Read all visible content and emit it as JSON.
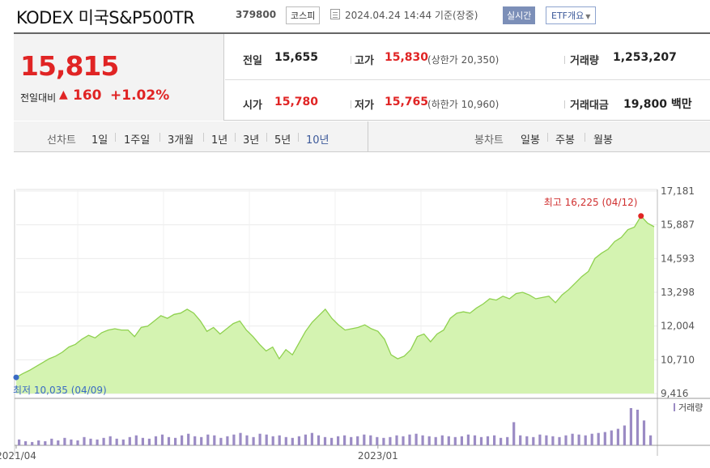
{
  "header": {
    "name": "KODEX 미국S&P500TR",
    "code": "379800",
    "market": "코스피",
    "timestamp": "2024.04.24 14:44 기준(장중)",
    "realtime": "실시간",
    "etf_button": "ETF개요"
  },
  "quote": {
    "price": "15,815",
    "change_label": "전일대비",
    "change_arrow": "▲",
    "change_abs": "160",
    "change_pct": "+1.02%",
    "prev_close_label": "전일",
    "prev_close": "15,655",
    "high_label": "고가",
    "high": "15,830",
    "upper_limit_label": "상한가",
    "upper_limit": "20,350",
    "volume_label": "거래량",
    "volume": "1,253,207",
    "open_label": "시가",
    "open": "15,780",
    "low_label": "저가",
    "low": "15,765",
    "lower_limit_label": "하한가",
    "lower_limit": "10,960",
    "amount_label": "거래대금",
    "amount": "19,800",
    "amount_unit": "백만"
  },
  "periods": {
    "label": "선차트",
    "items": [
      "1일",
      "1주일",
      "3개월",
      "1년",
      "3년",
      "5년",
      "10년"
    ],
    "active": "10년",
    "candle_label": "봉차트",
    "candle_items": [
      "일봉",
      "주봉",
      "월봉"
    ]
  },
  "chart_data": {
    "type": "area",
    "ylim": [
      9416,
      17181
    ],
    "y_ticks": [
      "17,181",
      "15,887",
      "14,593",
      "13,298",
      "12,004",
      "10,710",
      "9,416"
    ],
    "y_tick_values": [
      17181,
      15887,
      14593,
      13298,
      12004,
      10710,
      9416
    ],
    "x_ticks": [
      "2021/04",
      "2023/01"
    ],
    "x_tick_index": [
      0,
      55
    ],
    "max_annotation": "최고 16,225 (04/12)",
    "min_annotation": "최저 10,035 (04/09)",
    "max_index": 95,
    "min_index": 0,
    "volume_label": "거래량",
    "line_color": "#8fd14f",
    "fill_color": "#d4f3b1",
    "volume_color": "#9b8bc4",
    "series": [
      {
        "values": [
          10035,
          10180,
          10300,
          10450,
          10600,
          10750,
          10850,
          11000,
          11200,
          11300,
          11500,
          11650,
          11550,
          11750,
          11850,
          11900,
          11850,
          11850,
          11600,
          11950,
          12000,
          12200,
          12400,
          12300,
          12450,
          12500,
          12650,
          12500,
          12200,
          11800,
          11950,
          11700,
          11900,
          12100,
          12200,
          11850,
          11600,
          11300,
          11050,
          11200,
          10750,
          11100,
          10900,
          11350,
          11800,
          12150,
          12400,
          12650,
          12300,
          12050,
          11850,
          11900,
          11950,
          12050,
          11900,
          11800,
          11500,
          10900,
          10750,
          10850,
          11100,
          11600,
          11700,
          11400,
          11700,
          11850,
          12300,
          12500,
          12550,
          12500,
          12700,
          12850,
          13050,
          13000,
          13150,
          13050,
          13250,
          13300,
          13200,
          13050,
          13100,
          13150,
          12900,
          13200,
          13400,
          13650,
          13900,
          14100,
          14600,
          14800,
          14950,
          15250,
          15400,
          15700,
          15800,
          16225,
          15950,
          15815
        ],
        "volume": [
          7,
          5,
          4,
          6,
          5,
          8,
          6,
          9,
          7,
          6,
          10,
          8,
          7,
          9,
          11,
          8,
          7,
          10,
          12,
          9,
          8,
          11,
          13,
          10,
          9,
          12,
          14,
          11,
          10,
          13,
          12,
          9,
          11,
          13,
          15,
          12,
          10,
          14,
          13,
          11,
          12,
          10,
          9,
          11,
          13,
          15,
          12,
          10,
          9,
          11,
          12,
          10,
          11,
          13,
          12,
          10,
          9,
          10,
          12,
          11,
          13,
          14,
          12,
          11,
          10,
          12,
          11,
          10,
          11,
          13,
          12,
          10,
          11,
          12,
          9,
          10,
          28,
          12,
          11,
          10,
          13,
          12,
          11,
          10,
          12,
          14,
          13,
          12,
          14,
          15,
          16,
          18,
          20,
          24,
          45,
          43,
          30,
          12
        ]
      }
    ]
  }
}
